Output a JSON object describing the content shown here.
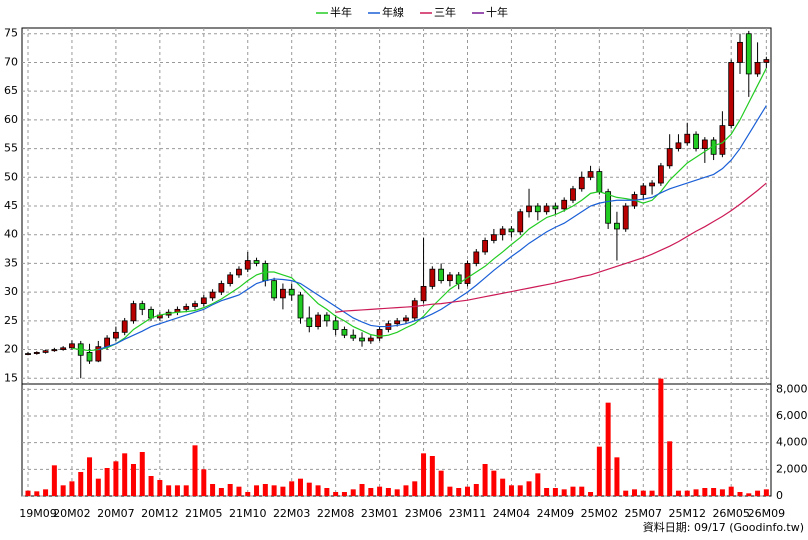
{
  "chart_data": [
    {
      "type": "candlestick",
      "open": [
        19.2,
        19.3,
        19.5,
        19.8,
        20.0,
        20.3,
        21.0,
        19.5,
        18.0,
        20.5,
        22.0,
        23.0,
        25.0,
        28.0,
        27.0,
        25.5,
        26.0,
        26.5,
        27.0,
        27.5,
        28.0,
        29.0,
        30.0,
        31.5,
        33.0,
        34.0,
        35.5,
        35.0,
        32.0,
        29.0,
        30.5,
        29.5,
        25.5,
        24.0,
        26.0,
        25.0,
        23.5,
        22.5,
        22.0,
        21.5,
        22.0,
        23.5,
        24.5,
        25.0,
        25.5,
        28.5,
        31.0,
        34.0,
        32.0,
        33.0,
        31.5,
        35.0,
        37.0,
        39.0,
        40.0,
        41.0,
        40.5,
        44.0,
        45.0,
        44.0,
        45.0,
        44.5,
        46.0,
        48.0,
        50.0,
        51.0,
        47.5,
        42.0,
        41.0,
        45.0,
        47.0,
        48.5,
        49.0,
        52.0,
        55.0,
        56.0,
        57.5,
        55.0,
        56.5,
        54.0,
        59.0,
        70.0,
        75.0,
        68.0,
        70.0
      ],
      "high": [
        19.6,
        19.7,
        20.0,
        20.3,
        20.6,
        21.6,
        21.5,
        21.0,
        21.5,
        22.5,
        24.0,
        25.5,
        28.5,
        28.5,
        27.5,
        26.5,
        27.0,
        27.5,
        28.0,
        28.5,
        29.5,
        30.5,
        32.0,
        33.5,
        34.5,
        37.0,
        36.0,
        35.5,
        32.5,
        31.5,
        31.5,
        30.0,
        27.5,
        26.5,
        26.5,
        26.0,
        24.0,
        23.5,
        23.0,
        22.5,
        24.0,
        25.0,
        25.5,
        26.0,
        29.0,
        39.5,
        34.5,
        35.0,
        33.5,
        33.5,
        35.5,
        37.5,
        39.5,
        41.0,
        41.5,
        41.5,
        44.5,
        48.0,
        45.5,
        45.5,
        45.5,
        46.5,
        48.5,
        51.0,
        52.0,
        51.5,
        48.0,
        44.0,
        45.5,
        47.5,
        49.0,
        49.5,
        52.5,
        57.5,
        57.5,
        59.5,
        58.0,
        57.0,
        57.0,
        61.5,
        70.5,
        75.0,
        75.5,
        73.5,
        71.0
      ],
      "low": [
        19.0,
        19.1,
        19.3,
        19.6,
        19.8,
        20.0,
        15.0,
        17.5,
        17.8,
        20.0,
        21.5,
        22.5,
        24.5,
        26.0,
        25.0,
        25.0,
        25.5,
        26.0,
        26.5,
        27.0,
        27.5,
        28.5,
        29.5,
        31.0,
        32.5,
        33.5,
        34.5,
        31.0,
        28.5,
        27.0,
        28.5,
        24.5,
        23.0,
        23.5,
        24.0,
        22.5,
        22.0,
        21.5,
        20.5,
        21.0,
        21.5,
        23.0,
        24.0,
        24.5,
        25.0,
        28.0,
        30.5,
        31.5,
        31.0,
        30.5,
        31.0,
        34.5,
        36.5,
        38.5,
        39.0,
        39.5,
        40.0,
        43.0,
        42.5,
        43.5,
        43.5,
        44.0,
        45.5,
        47.5,
        49.5,
        47.0,
        41.0,
        35.5,
        40.5,
        44.5,
        46.0,
        47.0,
        48.5,
        51.5,
        54.5,
        55.5,
        54.5,
        52.5,
        53.0,
        53.5,
        58.5,
        68.0,
        64.0,
        67.5,
        69.0
      ],
      "close": [
        19.3,
        19.5,
        19.8,
        20.0,
        20.3,
        21.0,
        19.0,
        18.0,
        20.5,
        22.0,
        23.0,
        25.0,
        28.0,
        27.0,
        25.5,
        26.0,
        26.5,
        27.0,
        27.5,
        28.0,
        29.0,
        30.0,
        31.5,
        33.0,
        34.0,
        35.5,
        35.0,
        32.0,
        29.0,
        30.5,
        29.5,
        25.5,
        24.0,
        26.0,
        25.0,
        23.5,
        22.5,
        22.0,
        21.5,
        22.0,
        23.5,
        24.5,
        25.0,
        25.5,
        28.5,
        31.0,
        34.0,
        32.0,
        33.0,
        31.5,
        35.0,
        37.0,
        39.0,
        40.0,
        41.0,
        40.5,
        44.0,
        45.0,
        44.0,
        45.0,
        44.5,
        46.0,
        48.0,
        50.0,
        51.0,
        47.5,
        42.0,
        41.0,
        45.0,
        47.0,
        48.5,
        49.0,
        52.0,
        55.0,
        56.0,
        57.5,
        55.0,
        56.5,
        54.0,
        59.0,
        70.0,
        73.5,
        68.0,
        70.0,
        70.5
      ],
      "up_color": "#b80000",
      "down_color": "#22cc22",
      "ylim": [
        14,
        76
      ],
      "yticks": [
        15,
        20,
        25,
        30,
        35,
        40,
        45,
        50,
        55,
        60,
        65,
        70,
        75
      ],
      "grid": true,
      "legend": "top",
      "series": [
        {
          "name": "半年",
          "color": "#22cc22",
          "values": [
            null,
            null,
            null,
            null,
            null,
            20.2,
            20.0,
            19.8,
            20.0,
            20.3,
            21.0,
            22.0,
            23.5,
            24.5,
            25.5,
            26.0,
            26.3,
            26.5,
            26.6,
            26.8,
            27.3,
            28.0,
            28.8,
            29.8,
            30.8,
            32.0,
            33.0,
            33.5,
            33.5,
            33.0,
            32.5,
            31.0,
            29.5,
            28.0,
            27.0,
            25.8,
            25.0,
            24.0,
            23.3,
            22.6,
            22.3,
            22.5,
            23.0,
            23.8,
            24.5,
            25.8,
            27.5,
            29.0,
            30.5,
            31.5,
            32.5,
            33.5,
            34.5,
            35.8,
            37.0,
            38.3,
            39.5,
            41.0,
            42.0,
            43.0,
            43.5,
            44.2,
            45.0,
            46.0,
            47.2,
            47.5,
            47.0,
            46.5,
            46.3,
            46.0,
            45.5,
            46.0,
            47.5,
            49.5,
            51.0,
            52.5,
            53.5,
            54.5,
            55.5,
            56.0,
            57.5,
            60.0,
            63.0,
            66.0,
            69.0
          ]
        },
        {
          "name": "年線",
          "color": "#1a5fd6",
          "values": [
            null,
            null,
            null,
            null,
            null,
            null,
            null,
            null,
            20.0,
            20.5,
            21.0,
            21.8,
            22.5,
            23.2,
            24.0,
            24.5,
            25.0,
            25.5,
            26.0,
            26.5,
            27.0,
            27.8,
            28.5,
            29.0,
            29.5,
            30.5,
            31.5,
            32.0,
            32.3,
            32.2,
            32.0,
            31.5,
            30.5,
            29.5,
            28.5,
            27.5,
            26.5,
            25.5,
            24.8,
            24.2,
            24.0,
            24.0,
            24.2,
            24.5,
            25.0,
            25.5,
            26.2,
            27.0,
            28.0,
            29.0,
            30.0,
            31.2,
            32.5,
            33.8,
            35.0,
            36.2,
            37.3,
            38.5,
            39.5,
            40.5,
            41.3,
            42.0,
            43.0,
            44.0,
            45.0,
            45.5,
            45.8,
            46.0,
            46.0,
            46.0,
            46.2,
            46.5,
            47.3,
            48.0,
            48.5,
            49.0,
            49.5,
            50.0,
            50.5,
            51.5,
            53.0,
            55.0,
            57.5,
            60.0,
            62.5
          ]
        },
        {
          "name": "三年",
          "color": "#cc1a55",
          "values": [
            null,
            null,
            null,
            null,
            null,
            null,
            null,
            null,
            null,
            null,
            null,
            null,
            null,
            null,
            null,
            null,
            null,
            null,
            null,
            null,
            null,
            null,
            null,
            null,
            null,
            null,
            null,
            null,
            null,
            null,
            null,
            null,
            null,
            null,
            null,
            26.5,
            26.7,
            26.8,
            26.9,
            27.0,
            27.1,
            27.2,
            27.3,
            27.4,
            27.5,
            27.7,
            27.9,
            28.0,
            28.2,
            28.4,
            28.6,
            28.9,
            29.2,
            29.5,
            29.8,
            30.1,
            30.4,
            30.7,
            31.0,
            31.3,
            31.6,
            32.0,
            32.3,
            32.7,
            33.0,
            33.5,
            34.0,
            34.5,
            35.0,
            35.5,
            36.0,
            36.6,
            37.3,
            38.0,
            38.8,
            39.7,
            40.6,
            41.4,
            42.3,
            43.2,
            44.2,
            45.3,
            46.5,
            47.7,
            49.0
          ]
        },
        {
          "name": "十年",
          "color": "#7a1a99",
          "values": [
            null,
            null,
            null,
            null,
            null,
            null,
            null,
            null,
            null,
            null,
            null,
            null,
            null,
            null,
            null,
            null,
            null,
            null,
            null,
            null,
            null,
            null,
            null,
            null,
            null,
            null,
            null,
            null,
            null,
            null,
            null,
            null,
            null,
            null,
            null,
            null,
            null,
            null,
            null,
            null,
            null,
            null,
            null,
            null,
            null,
            null,
            null,
            null,
            null,
            null,
            null,
            null,
            null,
            null,
            null,
            null,
            null,
            null,
            null,
            null,
            null,
            null,
            null,
            null,
            null,
            null,
            null,
            null,
            null,
            null,
            null,
            null,
            null,
            null,
            null,
            null,
            null,
            null,
            null,
            null,
            null,
            null,
            null,
            null,
            null
          ]
        }
      ]
    },
    {
      "type": "bar",
      "categories": [
        "19M09",
        null,
        null,
        null,
        null,
        "20M02",
        null,
        null,
        null,
        null,
        "20M07",
        null,
        null,
        null,
        null,
        "20M12",
        null,
        null,
        null,
        null,
        "21M05",
        null,
        null,
        null,
        null,
        "21M10",
        null,
        null,
        null,
        null,
        "22M03",
        null,
        null,
        null,
        null,
        "22M08",
        null,
        null,
        null,
        null,
        "23M01",
        null,
        null,
        null,
        null,
        "23M06",
        null,
        null,
        null,
        null,
        "23M11",
        null,
        null,
        null,
        null,
        "24M04",
        null,
        null,
        null,
        null,
        "24M09",
        null,
        null,
        null,
        null,
        "25M02",
        null,
        null,
        null,
        null,
        "25M07",
        null,
        null,
        null,
        null,
        "25M12",
        null,
        null,
        null,
        null,
        "26M05",
        null,
        null,
        null,
        "26M09"
      ],
      "values": [
        400,
        350,
        500,
        2300,
        800,
        1100,
        1800,
        2900,
        1300,
        2100,
        2600,
        3200,
        2400,
        3300,
        1500,
        1200,
        800,
        800,
        800,
        3800,
        2000,
        900,
        600,
        900,
        700,
        300,
        800,
        900,
        800,
        700,
        1100,
        1300,
        1000,
        800,
        600,
        300,
        300,
        500,
        900,
        600,
        700,
        600,
        500,
        800,
        1100,
        3200,
        3000,
        1900,
        700,
        600,
        700,
        900,
        2400,
        1900,
        1300,
        800,
        800,
        1100,
        1700,
        600,
        600,
        500,
        700,
        700,
        300,
        3700,
        7000,
        2900,
        400,
        500,
        400,
        400,
        8800,
        4100,
        400,
        400,
        500,
        600,
        600,
        500,
        700,
        300,
        200,
        400,
        500
      ],
      "color": "#ff0000",
      "ylim": [
        0,
        8400
      ],
      "yticks": [
        0,
        {
          "value": 2000,
          "label": "2,000"
        },
        {
          "value": 4000,
          "label": "4,000"
        },
        {
          "value": 6000,
          "label": "6,000"
        },
        {
          "value": 8000,
          "label": "8,000"
        }
      ],
      "grid": true
    }
  ],
  "footer": "資料日期: 09/17  (Goodinfo.tw)"
}
